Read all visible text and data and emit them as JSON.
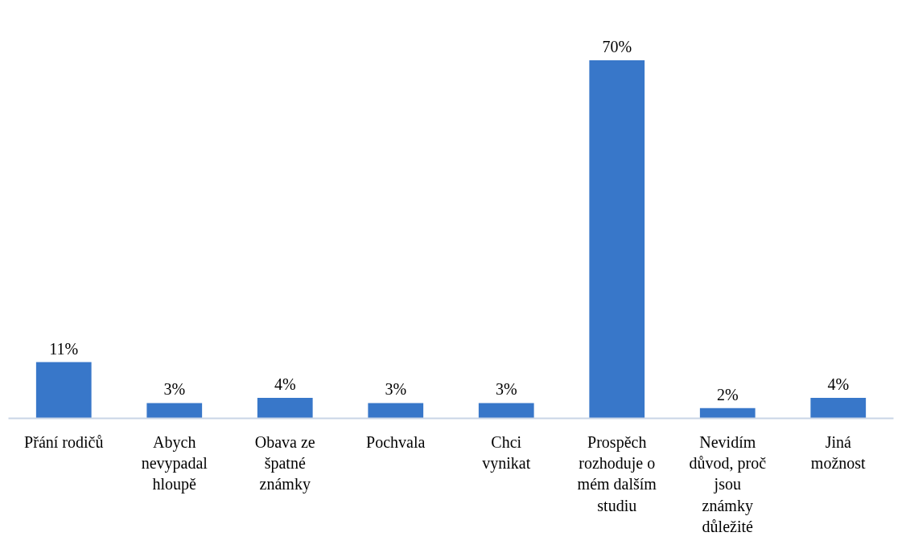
{
  "chart_data": {
    "type": "bar",
    "categories": [
      "Přání rodičů",
      "Abych\nnevypadal\nhloupě",
      "Obava ze\nšpatné\nznámky",
      "Pochvala",
      "Chci\nvynikat",
      "Prospěch\nrozhoduje o\nmém dalším\nstudiu",
      "Nevidím\ndůvod, proč\njsou\nznámky\ndůležité",
      "Jiná\nmožnost"
    ],
    "values": [
      11,
      3,
      4,
      3,
      3,
      70,
      2,
      4
    ],
    "value_labels": [
      "11%",
      "3%",
      "4%",
      "3%",
      "3%",
      "70%",
      "2%",
      "4%"
    ],
    "color": "#3877c9",
    "grid": false
  }
}
